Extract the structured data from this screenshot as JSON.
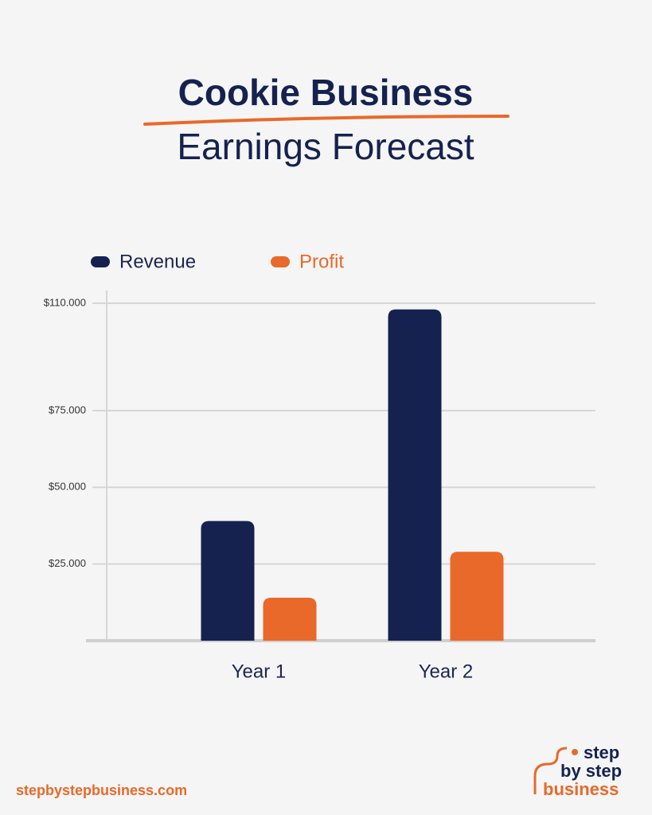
{
  "chart_data": {
    "type": "bar",
    "title": "Cookie Business",
    "subtitle": "Earnings Forecast",
    "categories": [
      "Year 1",
      "Year 2"
    ],
    "series": [
      {
        "name": "Revenue",
        "color": "#15224f",
        "values": [
          39000,
          108000
        ]
      },
      {
        "name": "Profit",
        "color": "#e8692a",
        "values": [
          14000,
          29000
        ]
      }
    ],
    "ylim": [
      0,
      110000
    ],
    "yticks": [
      {
        "value": 25000,
        "label": "$25.000"
      },
      {
        "value": 50000,
        "label": "$50.000"
      },
      {
        "value": 75000,
        "label": "$75.000"
      },
      {
        "value": 110000,
        "label": "$110.000"
      }
    ],
    "grid": true,
    "legend": "top-left"
  },
  "footer": {
    "url": "stepbystepbusiness.com",
    "logo": [
      "step",
      "by step",
      "business"
    ]
  }
}
